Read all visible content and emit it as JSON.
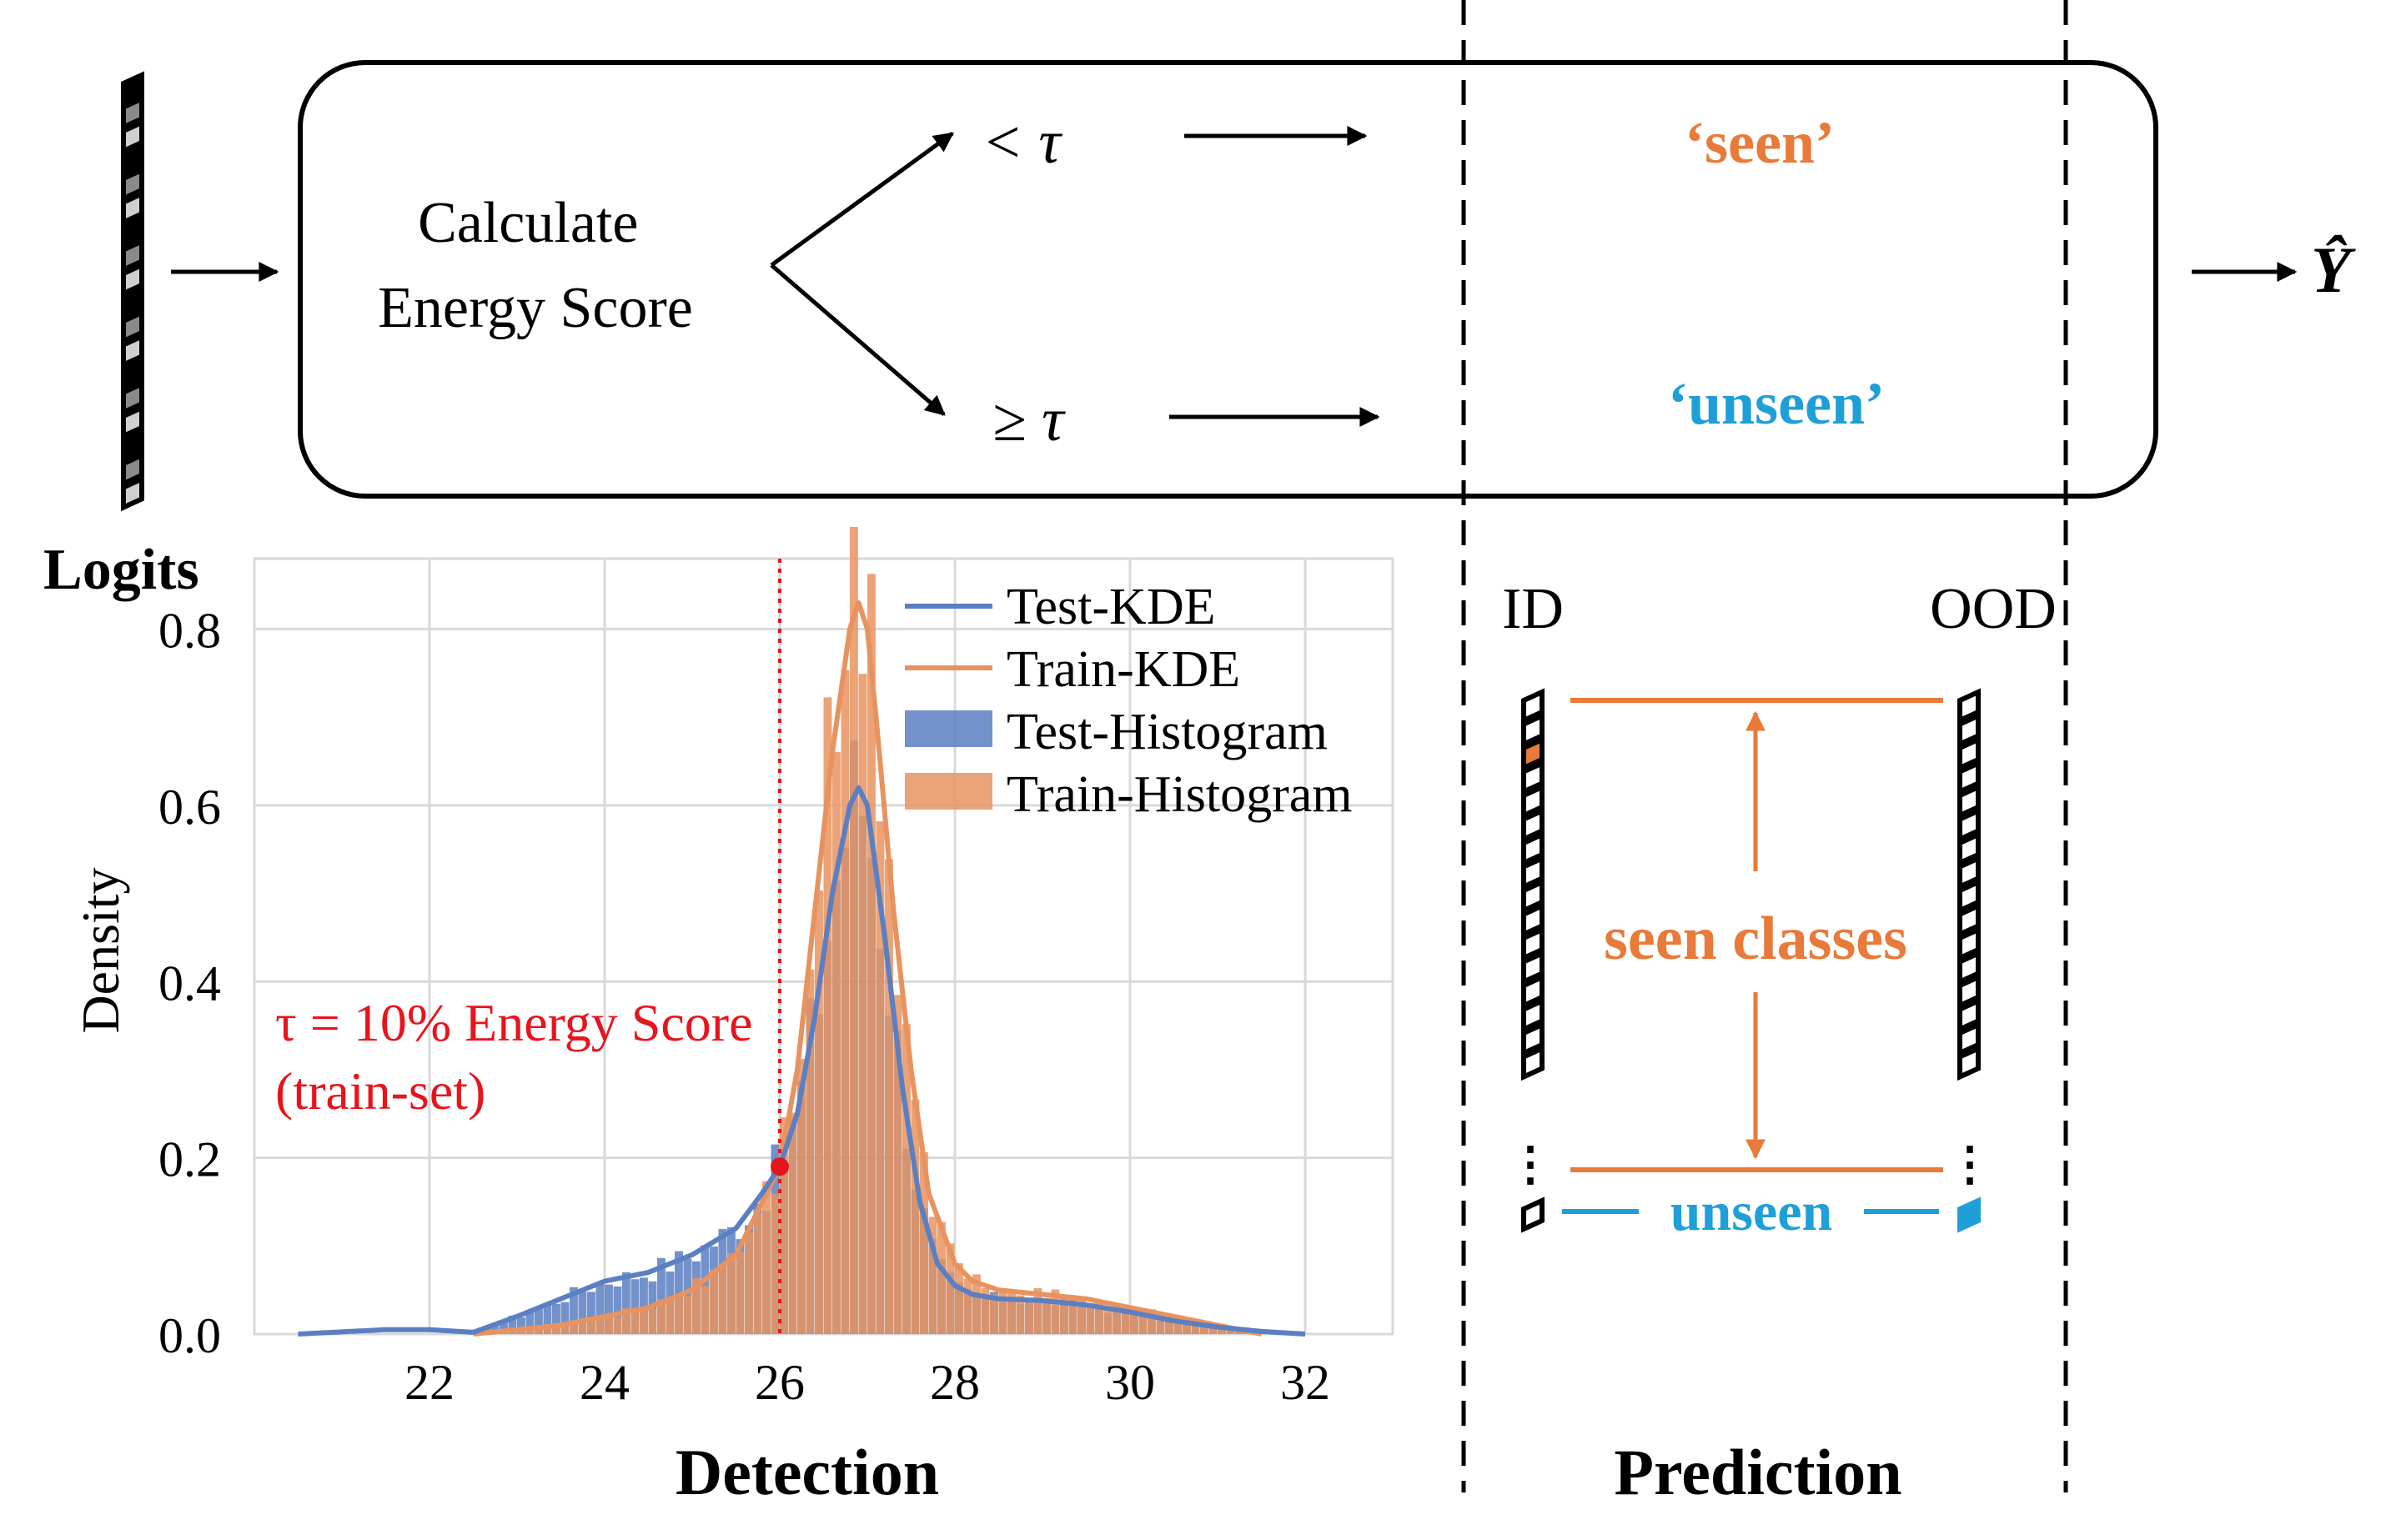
{
  "colors": {
    "orange": "#e87a3a",
    "blue": "#1f9fd8",
    "threshold_red": "#e8141c",
    "test_blue": "#5a7fc2",
    "train_orange": "#e8935f",
    "black": "#000000",
    "grid": "#d9d9d9"
  },
  "pipeline": {
    "calc_line1": "Calculate",
    "calc_line2": "Energy Score",
    "branch_lt": "< τ",
    "branch_ge": "≥ τ",
    "seen": "‘seen’",
    "unseen": "‘unseen’",
    "output": "Ŷ",
    "logits_label": "Logits"
  },
  "prediction": {
    "id_label": "ID",
    "ood_label": "OOD",
    "seen_classes": "seen classes",
    "unseen": "unseen",
    "dots_left": "⋮",
    "dots_right": "⋮"
  },
  "section_titles": {
    "detection": "Detection",
    "prediction": "Prediction"
  },
  "chart_data": {
    "type": "histogram",
    "xlabel": "",
    "ylabel": "Density",
    "xlim": [
      20.0,
      33.0
    ],
    "ylim": [
      0.0,
      0.88
    ],
    "xticks": [
      22,
      24,
      26,
      28,
      30,
      32
    ],
    "yticks": [
      0.0,
      0.2,
      0.4,
      0.6,
      0.8
    ],
    "ytick_labels": [
      "0.0",
      "0.2",
      "0.4",
      "0.6",
      "0.8"
    ],
    "grid": true,
    "legend_position": "top-right",
    "legend": [
      "Test-KDE",
      "Train-KDE",
      "Test-Histogram",
      "Train-Histogram"
    ],
    "threshold": {
      "x": 26.0,
      "y": 0.19,
      "label_line1": "τ = 10% Energy Score",
      "label_line2": "(train-set)"
    },
    "test_kde": {
      "name": "Test-KDE",
      "x": [
        20.5,
        21.5,
        22.0,
        22.5,
        23.0,
        23.5,
        24.0,
        24.5,
        25.0,
        25.5,
        25.8,
        26.0,
        26.2,
        26.4,
        26.6,
        26.8,
        26.9,
        27.0,
        27.2,
        27.4,
        27.6,
        27.8,
        28.0,
        28.2,
        28.5,
        29.0,
        29.5,
        30.0,
        30.5,
        31.0,
        31.5,
        32.0
      ],
      "y": [
        0.0,
        0.005,
        0.005,
        0.002,
        0.02,
        0.04,
        0.06,
        0.07,
        0.09,
        0.12,
        0.16,
        0.19,
        0.25,
        0.36,
        0.5,
        0.6,
        0.62,
        0.6,
        0.45,
        0.28,
        0.15,
        0.08,
        0.055,
        0.045,
        0.04,
        0.038,
        0.033,
        0.025,
        0.015,
        0.008,
        0.003,
        0.0
      ]
    },
    "train_kde": {
      "name": "Train-KDE",
      "x": [
        22.5,
        23.0,
        23.5,
        24.0,
        24.5,
        25.0,
        25.5,
        26.0,
        26.2,
        26.4,
        26.6,
        26.8,
        26.9,
        27.0,
        27.1,
        27.3,
        27.5,
        27.7,
        28.0,
        28.2,
        28.5,
        29.0,
        29.5,
        30.0,
        30.5,
        31.0,
        31.5
      ],
      "y": [
        0.0,
        0.005,
        0.01,
        0.02,
        0.03,
        0.05,
        0.09,
        0.19,
        0.3,
        0.48,
        0.66,
        0.8,
        0.83,
        0.8,
        0.7,
        0.48,
        0.3,
        0.16,
        0.08,
        0.06,
        0.05,
        0.045,
        0.04,
        0.03,
        0.02,
        0.01,
        0.0
      ]
    }
  }
}
